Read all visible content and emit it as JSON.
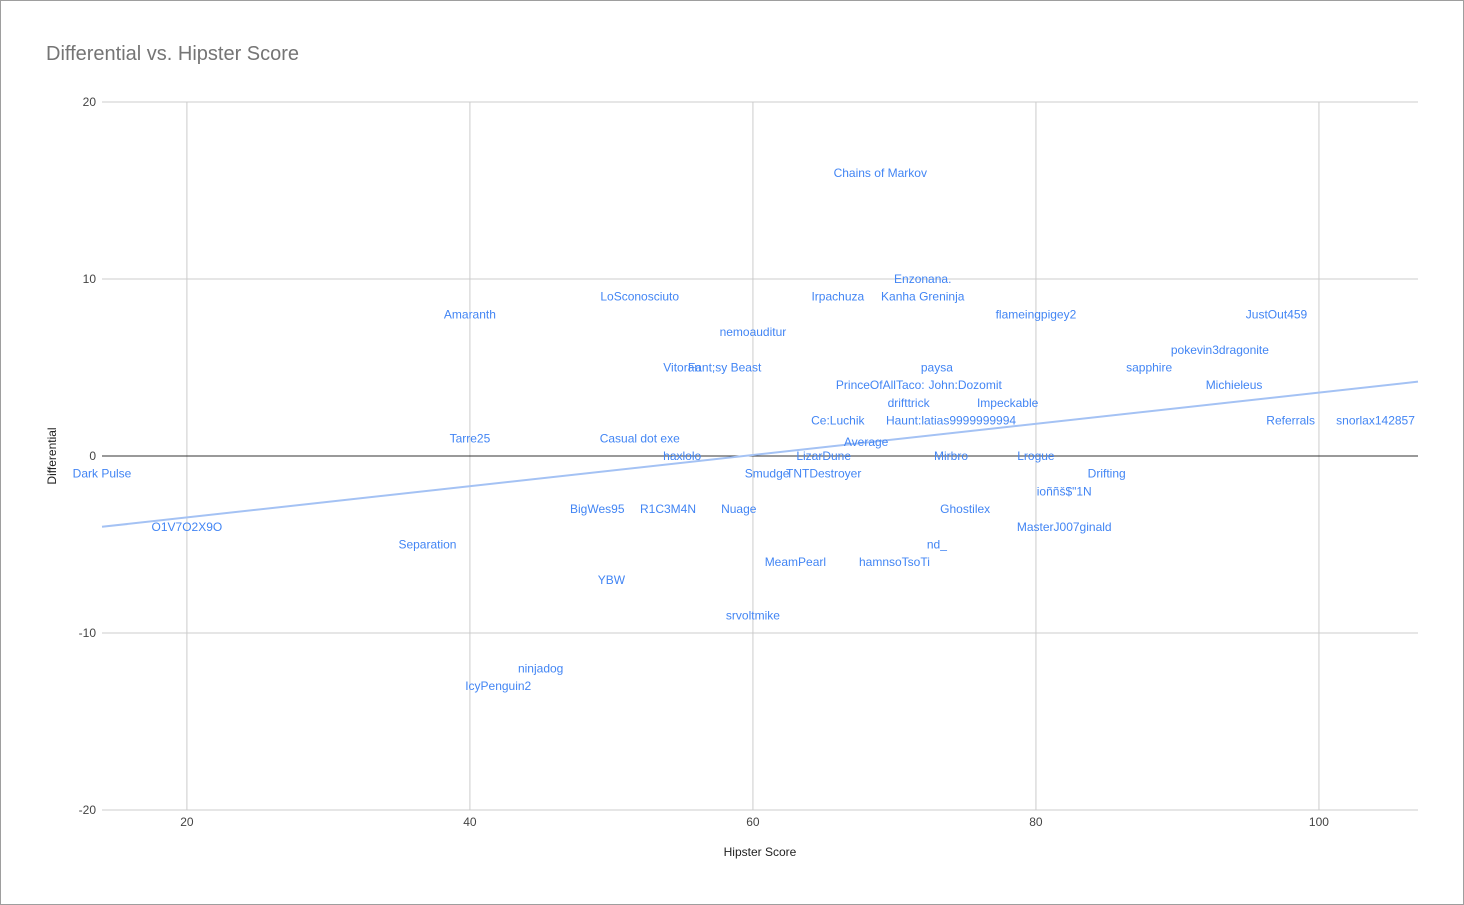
{
  "chart_data": {
    "type": "scatter",
    "title": "Differential vs. Hipster Score",
    "xlabel": "Hipster Score",
    "ylabel": "Differential",
    "xlim": [
      14,
      107
    ],
    "ylim": [
      -20,
      20
    ],
    "x_ticks": [
      20,
      40,
      60,
      80,
      100
    ],
    "y_ticks": [
      -20,
      -10,
      0,
      10,
      20
    ],
    "grid": true,
    "legend": "none",
    "point_labels_only": true,
    "colors": {
      "labels": "#4285f4",
      "trendline": "#a4c2f4",
      "grid": "#cccccc",
      "zero_line": "#333333",
      "axis_text": "#444444",
      "title": "#757575"
    },
    "trendline": {
      "type": "linear",
      "points": [
        [
          14,
          -4.0
        ],
        [
          107,
          4.2
        ]
      ]
    },
    "points": [
      {
        "label": "Chains of Markov",
        "x": 69,
        "y": 16
      },
      {
        "label": "Enzonana.",
        "x": 72,
        "y": 10
      },
      {
        "label": "LoSconosciuto",
        "x": 52,
        "y": 9
      },
      {
        "label": "Irpachuza",
        "x": 66,
        "y": 9
      },
      {
        "label": "Kanha Greninja",
        "x": 72,
        "y": 9
      },
      {
        "label": "Amaranth",
        "x": 40,
        "y": 8
      },
      {
        "label": "flameingpigey2",
        "x": 80,
        "y": 8
      },
      {
        "label": "JustOut459",
        "x": 97,
        "y": 8
      },
      {
        "label": "nemoauditur",
        "x": 60,
        "y": 7
      },
      {
        "label": "pokevin3dragonite",
        "x": 93,
        "y": 6
      },
      {
        "label": "Vitoran",
        "x": 55,
        "y": 5
      },
      {
        "label": "Fant;sy Beast",
        "x": 58,
        "y": 5
      },
      {
        "label": "paysa",
        "x": 73,
        "y": 5
      },
      {
        "label": "sapphire",
        "x": 88,
        "y": 5
      },
      {
        "label": "PrinceOfAllTaco:",
        "x": 69,
        "y": 4
      },
      {
        "label": "John:Dozomit",
        "x": 75,
        "y": 4
      },
      {
        "label": "Michieleus",
        "x": 94,
        "y": 4
      },
      {
        "label": "drifttrick",
        "x": 71,
        "y": 3
      },
      {
        "label": "Impeckable",
        "x": 78,
        "y": 3
      },
      {
        "label": "Ce:Luchik",
        "x": 66,
        "y": 2
      },
      {
        "label": "Haunt:latias9999999994",
        "x": 74,
        "y": 2
      },
      {
        "label": "Referrals",
        "x": 98,
        "y": 2
      },
      {
        "label": "snorlax142857",
        "x": 104,
        "y": 2
      },
      {
        "label": "Tarre25",
        "x": 40,
        "y": 1
      },
      {
        "label": "Casual dot exe",
        "x": 52,
        "y": 1
      },
      {
        "label": "Average",
        "x": 68,
        "y": 0.8
      },
      {
        "label": "Dark Pulse",
        "x": 14,
        "y": -1
      },
      {
        "label": "haxlolo",
        "x": 55,
        "y": 0
      },
      {
        "label": "LizarDune",
        "x": 65,
        "y": 0
      },
      {
        "label": "Mirbro",
        "x": 74,
        "y": 0
      },
      {
        "label": "Lrogue",
        "x": 80,
        "y": 0
      },
      {
        "label": "Smudge",
        "x": 61,
        "y": -1
      },
      {
        "label": "TNTDestroyer",
        "x": 65,
        "y": -1
      },
      {
        "label": "Drifting",
        "x": 85,
        "y": -1
      },
      {
        "label": "ioññš$\"1N",
        "x": 82,
        "y": -2
      },
      {
        "label": "BigWes95",
        "x": 49,
        "y": -3
      },
      {
        "label": "R1C3M4N",
        "x": 54,
        "y": -3
      },
      {
        "label": "Nuage",
        "x": 59,
        "y": -3
      },
      {
        "label": "Ghostilex",
        "x": 75,
        "y": -3
      },
      {
        "label": "O1V7O2X9O",
        "x": 20,
        "y": -4
      },
      {
        "label": "MasterJ007ginald",
        "x": 82,
        "y": -4
      },
      {
        "label": "Separation",
        "x": 37,
        "y": -5
      },
      {
        "label": "nd_",
        "x": 73,
        "y": -5
      },
      {
        "label": "MeamPearl",
        "x": 63,
        "y": -6
      },
      {
        "label": "hamnsoTsoTi",
        "x": 70,
        "y": -6
      },
      {
        "label": "YBW",
        "x": 50,
        "y": -7
      },
      {
        "label": "srvoltmike",
        "x": 60,
        "y": -9
      },
      {
        "label": "ninjadog",
        "x": 45,
        "y": -12
      },
      {
        "label": "IcyPenguin2",
        "x": 42,
        "y": -13
      }
    ]
  }
}
